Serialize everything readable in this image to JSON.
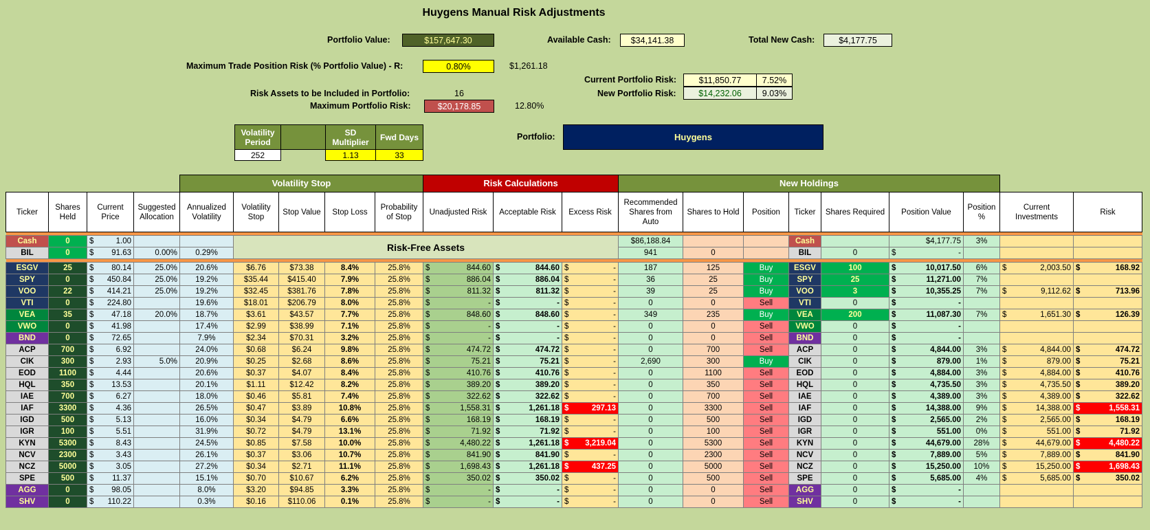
{
  "title": "Huygens Manual Risk Adjustments",
  "summary": {
    "portfolio_value_label": "Portfolio Value:",
    "portfolio_value": "$157,647.30",
    "available_cash_label": "Available Cash:",
    "available_cash": "$34,141.38",
    "total_new_cash_label": "Total New Cash:",
    "total_new_cash": "$4,177.75",
    "max_trade_risk_label": "Maximum Trade Position Risk (% Portfolio Value) - R:",
    "max_trade_risk_pct": "0.80%",
    "max_trade_risk_amount": "$1,261.18",
    "risk_assets_label": "Risk Assets to be Included in Portfolio:",
    "risk_assets": "16",
    "max_portfolio_risk_label": "Maximum Portfolio Risk:",
    "max_portfolio_risk": "$20,178.85",
    "max_portfolio_risk_pct": "12.80%",
    "current_risk_label": "Current Portfolio Risk:",
    "current_risk": "$11,850.77",
    "current_risk_pct": "7.52%",
    "new_risk_label": "New Portfolio Risk:",
    "new_risk": "$14,232.06",
    "new_risk_pct": "9.03%",
    "portfolio_label": "Portfolio:",
    "portfolio_name": "Huygens"
  },
  "params": {
    "vol_period_label": "Volatility Period",
    "vol_period": "252",
    "sd_mult_label": "SD Multiplier",
    "sd_mult": "1.13",
    "fwd_days_label": "Fwd Days",
    "fwd_days": "33"
  },
  "sections": {
    "volatility_stop": "Volatility Stop",
    "risk_calc": "Risk Calculations",
    "new_holdings": "New Holdings",
    "risk_free": "Risk-Free Assets"
  },
  "columns": [
    "Ticker",
    "Shares Held",
    "Current Price",
    "Suggested Allocation",
    "Annualized Volatility",
    "Volatility Stop",
    "Stop Value",
    "Stop Loss",
    "Probability of Stop",
    "Unadjusted Risk",
    "Acceptable Risk",
    "Excess Risk",
    "Recommended Shares from Auto",
    "Shares to Hold",
    "Position",
    "Ticker",
    "Shares Required",
    "Position Value",
    "Position %",
    "Current Investments",
    "Risk"
  ],
  "cash_rows": [
    {
      "ticker": "Cash",
      "shares": "0",
      "price": "1.00",
      "alloc": "",
      "vol": "",
      "rec": "$86,188.84",
      "hold": "",
      "pos": "",
      "ticker2": "Cash",
      "req": "",
      "posval": "$4,177.75",
      "pct": "3%"
    },
    {
      "ticker": "BIL",
      "shares": "0",
      "price": "91.63",
      "alloc": "0.00%",
      "vol": "0.29%",
      "rec": "941",
      "hold": "0",
      "pos": "",
      "ticker2": "BIL",
      "req": "0",
      "posval": "-",
      "pct": ""
    }
  ],
  "rows": [
    {
      "ticker": "ESGV",
      "tk": "navy",
      "shares": "25",
      "price": "80.14",
      "alloc": "25.0%",
      "vol": "20.6%",
      "vstop": "$6.76",
      "sval": "$73.38",
      "sloss": "8.4%",
      "prob": "25.8%",
      "unadj": "844.60",
      "acc": "844.60",
      "excess": "-",
      "rec": "187",
      "hold": "125",
      "pos": "Buy",
      "req": "100",
      "posval": "10,017.50",
      "pct": "6%",
      "inv": "2,003.50",
      "risk": "168.92"
    },
    {
      "ticker": "SPY",
      "tk": "navy",
      "shares": "0",
      "price": "450.84",
      "alloc": "25.0%",
      "vol": "19.2%",
      "vstop": "$35.44",
      "sval": "$415.40",
      "sloss": "7.9%",
      "prob": "25.8%",
      "unadj": "886.04",
      "acc": "886.04",
      "excess": "-",
      "rec": "36",
      "hold": "25",
      "pos": "Buy",
      "req": "25",
      "posval": "11,271.00",
      "pct": "7%",
      "inv": "",
      "risk": ""
    },
    {
      "ticker": "VOO",
      "tk": "navy",
      "shares": "22",
      "price": "414.21",
      "alloc": "25.0%",
      "vol": "19.2%",
      "vstop": "$32.45",
      "sval": "$381.76",
      "sloss": "7.8%",
      "prob": "25.8%",
      "unadj": "811.32",
      "acc": "811.32",
      "excess": "-",
      "rec": "39",
      "hold": "25",
      "pos": "Buy",
      "req": "3",
      "posval": "10,355.25",
      "pct": "7%",
      "inv": "9,112.62",
      "risk": "713.96"
    },
    {
      "ticker": "VTI",
      "tk": "navy",
      "shares": "0",
      "price": "224.80",
      "alloc": "",
      "vol": "19.6%",
      "vstop": "$18.01",
      "sval": "$206.79",
      "sloss": "8.0%",
      "prob": "25.8%",
      "unadj": "-",
      "acc": "-",
      "excess": "-",
      "rec": "0",
      "hold": "0",
      "pos": "Sell",
      "req": "0",
      "posval": "-",
      "pct": "",
      "inv": "",
      "risk": ""
    },
    {
      "ticker": "VEA",
      "tk": "green",
      "shares": "35",
      "price": "47.18",
      "alloc": "20.0%",
      "vol": "18.7%",
      "vstop": "$3.61",
      "sval": "$43.57",
      "sloss": "7.7%",
      "prob": "25.8%",
      "unadj": "848.60",
      "acc": "848.60",
      "excess": "-",
      "rec": "349",
      "hold": "235",
      "pos": "Buy",
      "req": "200",
      "posval": "11,087.30",
      "pct": "7%",
      "inv": "1,651.30",
      "risk": "126.39"
    },
    {
      "ticker": "VWO",
      "tk": "green",
      "shares": "0",
      "price": "41.98",
      "alloc": "",
      "vol": "17.4%",
      "vstop": "$2.99",
      "sval": "$38.99",
      "sloss": "7.1%",
      "prob": "25.8%",
      "unadj": "-",
      "acc": "-",
      "excess": "-",
      "rec": "0",
      "hold": "0",
      "pos": "Sell",
      "req": "0",
      "posval": "-",
      "pct": "",
      "inv": "",
      "risk": ""
    },
    {
      "ticker": "BND",
      "tk": "purple",
      "shares": "0",
      "price": "72.65",
      "alloc": "",
      "vol": "7.9%",
      "vstop": "$2.34",
      "sval": "$70.31",
      "sloss": "3.2%",
      "prob": "25.8%",
      "unadj": "-",
      "acc": "-",
      "excess": "-",
      "rec": "0",
      "hold": "0",
      "pos": "Sell",
      "req": "0",
      "posval": "-",
      "pct": "",
      "inv": "",
      "risk": ""
    },
    {
      "ticker": "ACP",
      "tk": "gray",
      "shares": "700",
      "price": "6.92",
      "alloc": "",
      "vol": "24.0%",
      "vstop": "$0.68",
      "sval": "$6.24",
      "sloss": "9.8%",
      "prob": "25.8%",
      "unadj": "474.72",
      "acc": "474.72",
      "excess": "-",
      "rec": "0",
      "hold": "700",
      "pos": "Sell",
      "req": "0",
      "posval": "4,844.00",
      "pct": "3%",
      "inv": "4,844.00",
      "risk": "474.72"
    },
    {
      "ticker": "CIK",
      "tk": "gray",
      "shares": "300",
      "price": "2.93",
      "alloc": "5.0%",
      "vol": "20.9%",
      "vstop": "$0.25",
      "sval": "$2.68",
      "sloss": "8.6%",
      "prob": "25.8%",
      "unadj": "75.21",
      "acc": "75.21",
      "excess": "-",
      "rec": "2,690",
      "hold": "300",
      "pos": "Buy",
      "req": "0",
      "posval": "879.00",
      "pct": "1%",
      "inv": "879.00",
      "risk": "75.21"
    },
    {
      "ticker": "EOD",
      "tk": "gray",
      "shares": "1100",
      "price": "4.44",
      "alloc": "",
      "vol": "20.6%",
      "vstop": "$0.37",
      "sval": "$4.07",
      "sloss": "8.4%",
      "prob": "25.8%",
      "unadj": "410.76",
      "acc": "410.76",
      "excess": "-",
      "rec": "0",
      "hold": "1100",
      "pos": "Sell",
      "req": "0",
      "posval": "4,884.00",
      "pct": "3%",
      "inv": "4,884.00",
      "risk": "410.76"
    },
    {
      "ticker": "HQL",
      "tk": "gray",
      "shares": "350",
      "price": "13.53",
      "alloc": "",
      "vol": "20.1%",
      "vstop": "$1.11",
      "sval": "$12.42",
      "sloss": "8.2%",
      "prob": "25.8%",
      "unadj": "389.20",
      "acc": "389.20",
      "excess": "-",
      "rec": "0",
      "hold": "350",
      "pos": "Sell",
      "req": "0",
      "posval": "4,735.50",
      "pct": "3%",
      "inv": "4,735.50",
      "risk": "389.20"
    },
    {
      "ticker": "IAE",
      "tk": "gray",
      "shares": "700",
      "price": "6.27",
      "alloc": "",
      "vol": "18.0%",
      "vstop": "$0.46",
      "sval": "$5.81",
      "sloss": "7.4%",
      "prob": "25.8%",
      "unadj": "322.62",
      "acc": "322.62",
      "excess": "-",
      "rec": "0",
      "hold": "700",
      "pos": "Sell",
      "req": "0",
      "posval": "4,389.00",
      "pct": "3%",
      "inv": "4,389.00",
      "risk": "322.62"
    },
    {
      "ticker": "IAF",
      "tk": "gray",
      "shares": "3300",
      "price": "4.36",
      "alloc": "",
      "vol": "26.5%",
      "vstop": "$0.47",
      "sval": "$3.89",
      "sloss": "10.8%",
      "prob": "25.8%",
      "unadj": "1,558.31",
      "acc": "1,261.18",
      "excess": "297.13",
      "rec": "0",
      "hold": "3300",
      "pos": "Sell",
      "req": "0",
      "posval": "14,388.00",
      "pct": "9%",
      "inv": "14,388.00",
      "risk": "1,558.31"
    },
    {
      "ticker": "IGD",
      "tk": "gray",
      "shares": "500",
      "price": "5.13",
      "alloc": "",
      "vol": "16.0%",
      "vstop": "$0.34",
      "sval": "$4.79",
      "sloss": "6.6%",
      "prob": "25.8%",
      "unadj": "168.19",
      "acc": "168.19",
      "excess": "-",
      "rec": "0",
      "hold": "500",
      "pos": "Sell",
      "req": "0",
      "posval": "2,565.00",
      "pct": "2%",
      "inv": "2,565.00",
      "risk": "168.19"
    },
    {
      "ticker": "IGR",
      "tk": "gray",
      "shares": "100",
      "price": "5.51",
      "alloc": "",
      "vol": "31.9%",
      "vstop": "$0.72",
      "sval": "$4.79",
      "sloss": "13.1%",
      "prob": "25.8%",
      "unadj": "71.92",
      "acc": "71.92",
      "excess": "-",
      "rec": "0",
      "hold": "100",
      "pos": "Sell",
      "req": "0",
      "posval": "551.00",
      "pct": "0%",
      "inv": "551.00",
      "risk": "71.92"
    },
    {
      "ticker": "KYN",
      "tk": "gray",
      "shares": "5300",
      "price": "8.43",
      "alloc": "",
      "vol": "24.5%",
      "vstop": "$0.85",
      "sval": "$7.58",
      "sloss": "10.0%",
      "prob": "25.8%",
      "unadj": "4,480.22",
      "acc": "1,261.18",
      "excess": "3,219.04",
      "rec": "0",
      "hold": "5300",
      "pos": "Sell",
      "req": "0",
      "posval": "44,679.00",
      "pct": "28%",
      "inv": "44,679.00",
      "risk": "4,480.22"
    },
    {
      "ticker": "NCV",
      "tk": "gray",
      "shares": "2300",
      "price": "3.43",
      "alloc": "",
      "vol": "26.1%",
      "vstop": "$0.37",
      "sval": "$3.06",
      "sloss": "10.7%",
      "prob": "25.8%",
      "unadj": "841.90",
      "acc": "841.90",
      "excess": "-",
      "rec": "0",
      "hold": "2300",
      "pos": "Sell",
      "req": "0",
      "posval": "7,889.00",
      "pct": "5%",
      "inv": "7,889.00",
      "risk": "841.90"
    },
    {
      "ticker": "NCZ",
      "tk": "gray",
      "shares": "5000",
      "price": "3.05",
      "alloc": "",
      "vol": "27.2%",
      "vstop": "$0.34",
      "sval": "$2.71",
      "sloss": "11.1%",
      "prob": "25.8%",
      "unadj": "1,698.43",
      "acc": "1,261.18",
      "excess": "437.25",
      "rec": "0",
      "hold": "5000",
      "pos": "Sell",
      "req": "0",
      "posval": "15,250.00",
      "pct": "10%",
      "inv": "15,250.00",
      "risk": "1,698.43"
    },
    {
      "ticker": "SPE",
      "tk": "gray",
      "shares": "500",
      "price": "11.37",
      "alloc": "",
      "vol": "15.1%",
      "vstop": "$0.70",
      "sval": "$10.67",
      "sloss": "6.2%",
      "prob": "25.8%",
      "unadj": "350.02",
      "acc": "350.02",
      "excess": "-",
      "rec": "0",
      "hold": "500",
      "pos": "Sell",
      "req": "0",
      "posval": "5,685.00",
      "pct": "4%",
      "inv": "5,685.00",
      "risk": "350.02"
    },
    {
      "ticker": "AGG",
      "tk": "purple",
      "shares": "0",
      "price": "98.05",
      "alloc": "",
      "vol": "8.0%",
      "vstop": "$3.20",
      "sval": "$94.85",
      "sloss": "3.3%",
      "prob": "25.8%",
      "unadj": "-",
      "acc": "-",
      "excess": "-",
      "rec": "0",
      "hold": "0",
      "pos": "Sell",
      "req": "0",
      "posval": "-",
      "pct": "",
      "inv": "",
      "risk": ""
    },
    {
      "ticker": "SHV",
      "tk": "purple",
      "shares": "0",
      "price": "110.22",
      "alloc": "",
      "vol": "0.3%",
      "vstop": "$0.16",
      "sval": "$110.06",
      "sloss": "0.1%",
      "prob": "25.8%",
      "unadj": "-",
      "acc": "-",
      "excess": "-",
      "rec": "0",
      "hold": "0",
      "pos": "Sell",
      "req": "0",
      "posval": "-",
      "pct": "",
      "inv": "",
      "risk": ""
    }
  ],
  "red_risk_tickers": [
    "IAF",
    "KYN",
    "NCZ"
  ]
}
